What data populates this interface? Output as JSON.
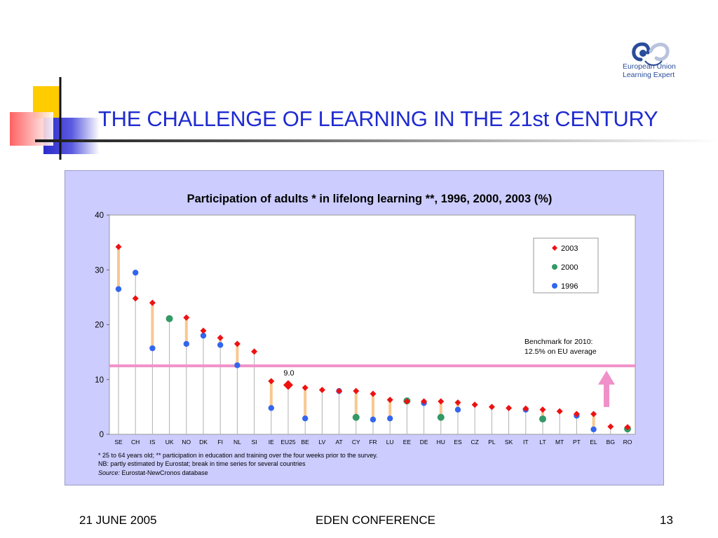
{
  "slide": {
    "title": "THE CHALLENGE OF LEARNING IN THE 21st CENTURY",
    "logo_line1": "European Union",
    "logo_line2": "Learning Expert",
    "footer_date": "21 JUNE 2005",
    "footer_conference": "EDEN CONFERENCE",
    "footer_page": "13"
  },
  "chart_data": {
    "type": "scatter",
    "title": "Participation of adults * in lifelong learning **, 1996, 2000, 2003 (%)",
    "categories": [
      "SE",
      "CH",
      "IS",
      "UK",
      "NO",
      "DK",
      "FI",
      "NL",
      "SI",
      "IE",
      "EU25",
      "BE",
      "LV",
      "AT",
      "CY",
      "FR",
      "LU",
      "EE",
      "DE",
      "HU",
      "ES",
      "CZ",
      "PL",
      "SK",
      "IT",
      "LT",
      "MT",
      "PT",
      "EL",
      "BG",
      "RO"
    ],
    "series": [
      {
        "name": "2003",
        "marker": "diamond",
        "color": "#ee1111",
        "values": [
          34.2,
          24.8,
          24.0,
          null,
          21.3,
          18.9,
          17.6,
          16.5,
          15.1,
          9.7,
          9.0,
          8.5,
          8.1,
          7.9,
          7.9,
          7.4,
          6.3,
          6.0,
          6.0,
          6.0,
          5.8,
          5.4,
          5.0,
          4.8,
          4.7,
          4.5,
          4.2,
          3.7,
          3.7,
          1.4,
          1.3
        ]
      },
      {
        "name": "2000",
        "marker": "circle",
        "color": "#339966",
        "values": [
          null,
          null,
          null,
          21.1,
          null,
          null,
          null,
          null,
          null,
          null,
          null,
          null,
          null,
          null,
          3.1,
          null,
          null,
          6.1,
          null,
          3.1,
          null,
          null,
          null,
          null,
          null,
          2.8,
          null,
          null,
          null,
          null,
          1.0
        ]
      },
      {
        "name": "1996",
        "marker": "circle",
        "color": "#3366ee",
        "values": [
          26.5,
          29.5,
          15.7,
          null,
          16.5,
          18.0,
          16.3,
          12.6,
          null,
          4.8,
          null,
          2.9,
          null,
          7.9,
          null,
          2.7,
          2.9,
          null,
          5.7,
          null,
          4.5,
          null,
          null,
          null,
          4.5,
          null,
          null,
          3.4,
          0.9,
          null,
          null
        ]
      }
    ],
    "ylim": [
      0,
      40
    ],
    "yticks": [
      0,
      10,
      20,
      30,
      40
    ],
    "legend_position": "top-right",
    "grid": false,
    "benchmark": {
      "value": 12.5,
      "label_line1": "Benchmark for 2010:",
      "label_line2": "12.5% on EU average",
      "color": "#f090c8"
    },
    "highlight": {
      "category": "EU25",
      "value_label": "9.0"
    },
    "notes": {
      "line1": "* 25 to 64 years old;    ** participation in education and training over the four weeks prior to the survey.",
      "line2": "NB: partly estimated by Eurostat; break in time series  for several countries",
      "source_label": "Source:",
      "source_text": " Eurostat-NewCronos database"
    }
  }
}
